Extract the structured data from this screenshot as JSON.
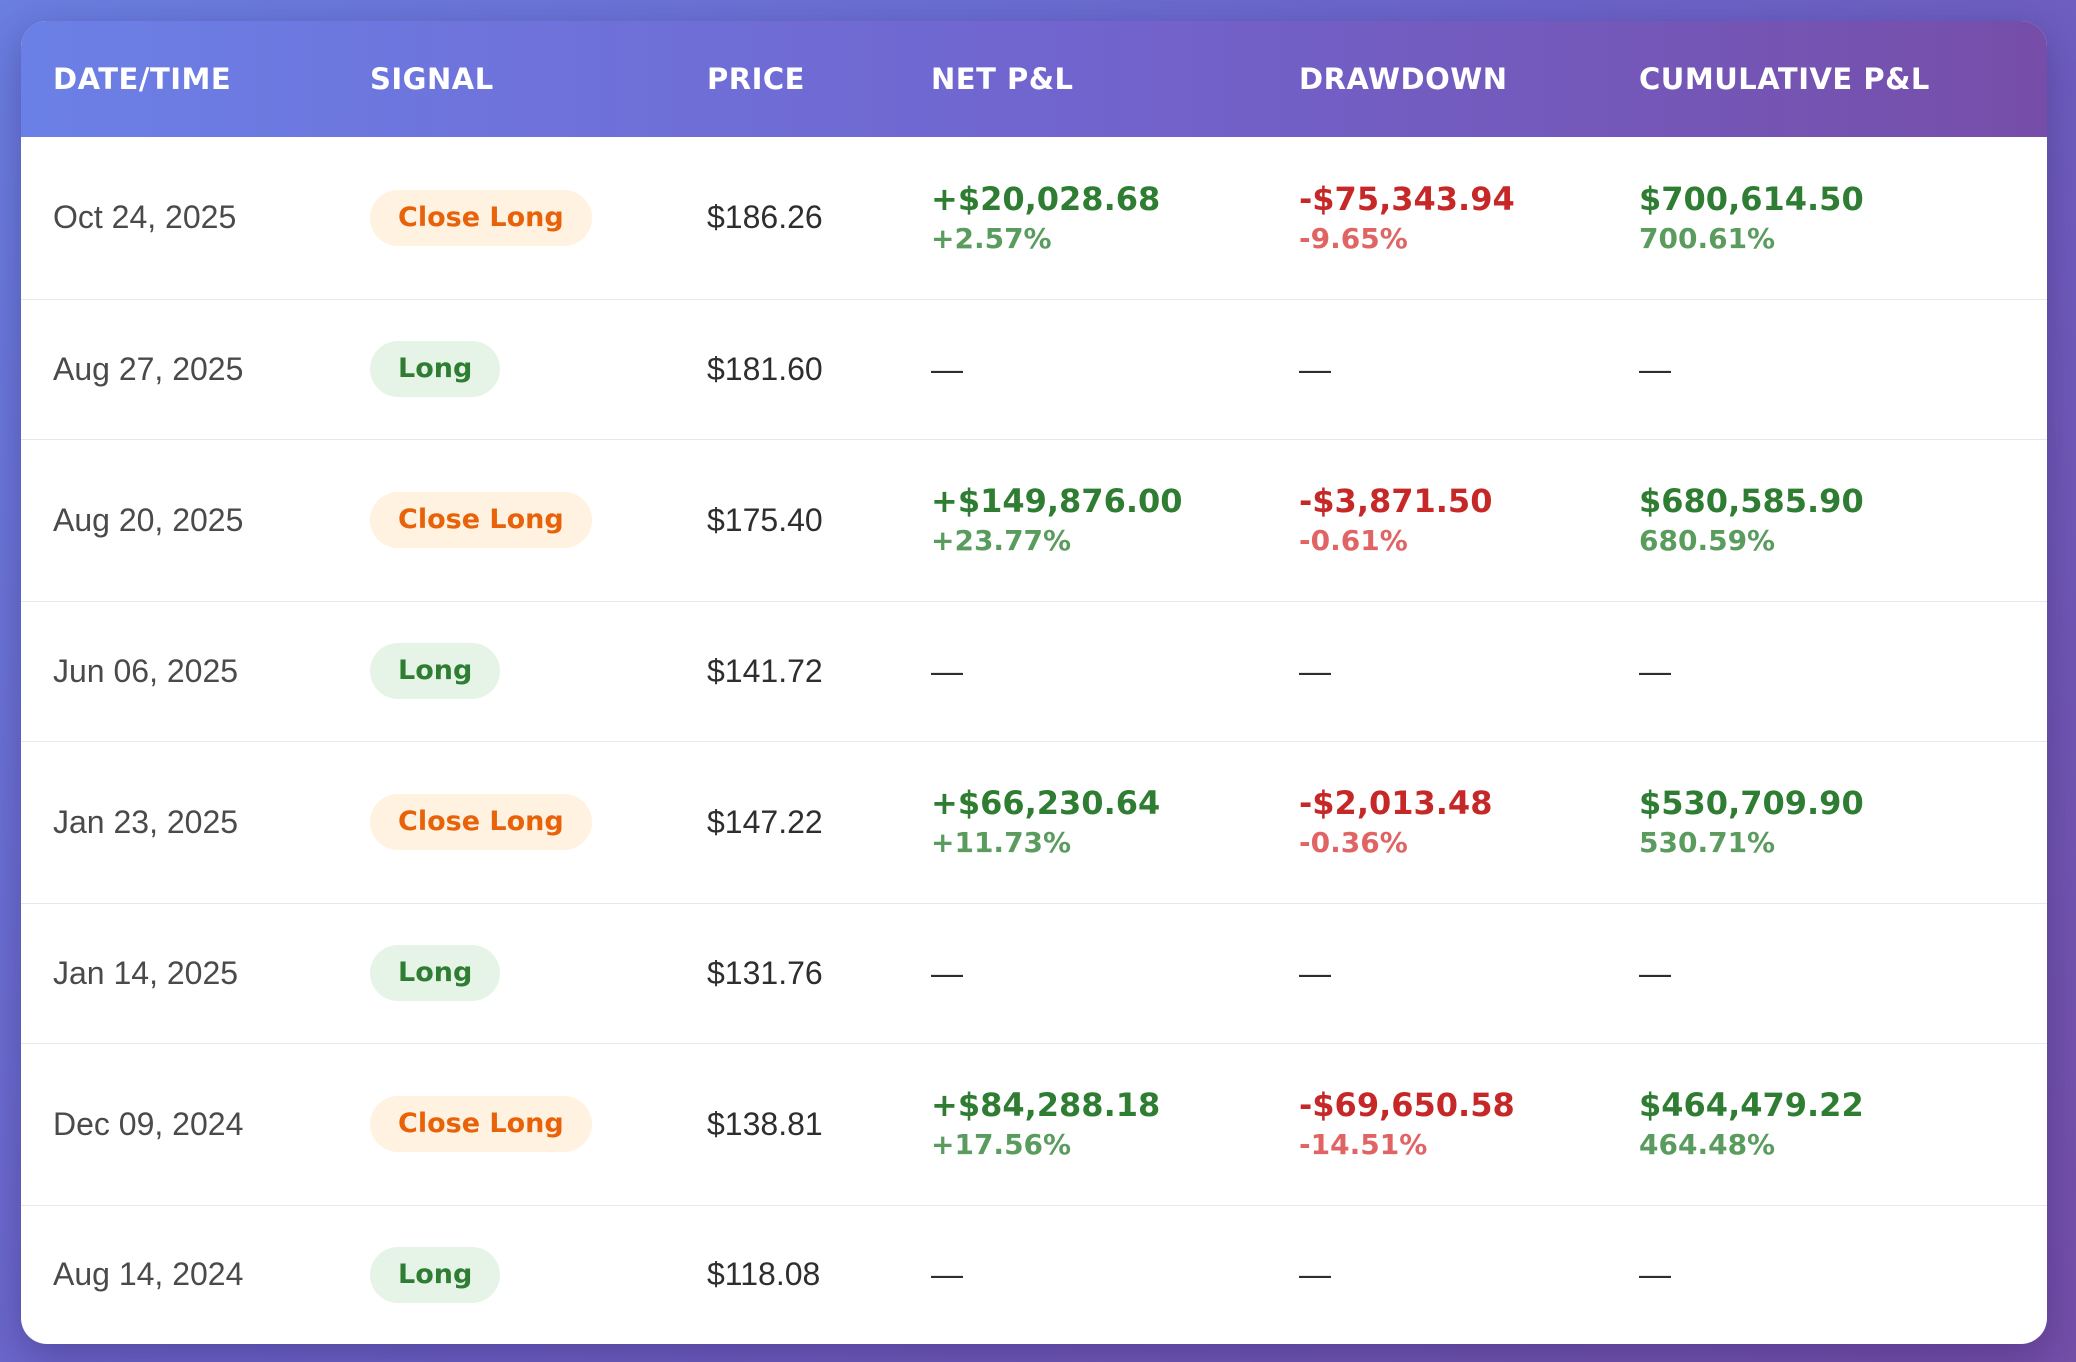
{
  "table": {
    "headers": {
      "date": "DATE/TIME",
      "signal": "SIGNAL",
      "price": "PRICE",
      "net_pl": "NET P&L",
      "drawdown": "DRAWDOWN",
      "cumulative_pl": "CUMULATIVE P&L"
    },
    "rows": [
      {
        "date": "Oct 24, 2025",
        "signal": "Close Long",
        "price": "$186.26",
        "net": "+$20,028.68",
        "net_pct": "+2.57%",
        "dd": "-$75,343.94",
        "dd_pct": "-9.65%",
        "cum": "$700,614.50",
        "cum_pct": "700.61%"
      },
      {
        "date": "Aug 27, 2025",
        "signal": "Long",
        "price": "$181.60",
        "net": "—",
        "dd": "—",
        "cum": "—"
      },
      {
        "date": "Aug 20, 2025",
        "signal": "Close Long",
        "price": "$175.40",
        "net": "+$149,876.00",
        "net_pct": "+23.77%",
        "dd": "-$3,871.50",
        "dd_pct": "-0.61%",
        "cum": "$680,585.90",
        "cum_pct": "680.59%"
      },
      {
        "date": "Jun 06, 2025",
        "signal": "Long",
        "price": "$141.72",
        "net": "—",
        "dd": "—",
        "cum": "—"
      },
      {
        "date": "Jan 23, 2025",
        "signal": "Close Long",
        "price": "$147.22",
        "net": "+$66,230.64",
        "net_pct": "+11.73%",
        "dd": "-$2,013.48",
        "dd_pct": "-0.36%",
        "cum": "$530,709.90",
        "cum_pct": "530.71%"
      },
      {
        "date": "Jan 14, 2025",
        "signal": "Long",
        "price": "$131.76",
        "net": "—",
        "dd": "—",
        "cum": "—"
      },
      {
        "date": "Dec 09, 2024",
        "signal": "Close Long",
        "price": "$138.81",
        "net": "+$84,288.18",
        "net_pct": "+17.56%",
        "dd": "-$69,650.58",
        "dd_pct": "-14.51%",
        "cum": "$464,479.22",
        "cum_pct": "464.48%"
      },
      {
        "date": "Aug 14, 2024",
        "signal": "Long",
        "price": "$118.08",
        "net": "—",
        "dd": "—",
        "cum": "—"
      }
    ]
  },
  "colors": {
    "profit": "#2e7d32",
    "loss": "#c62828",
    "close_badge_bg": "#fff2e0",
    "close_badge_text": "#e8620a",
    "long_badge_bg": "#e6f4e7",
    "long_badge_text": "#2e7d32"
  }
}
